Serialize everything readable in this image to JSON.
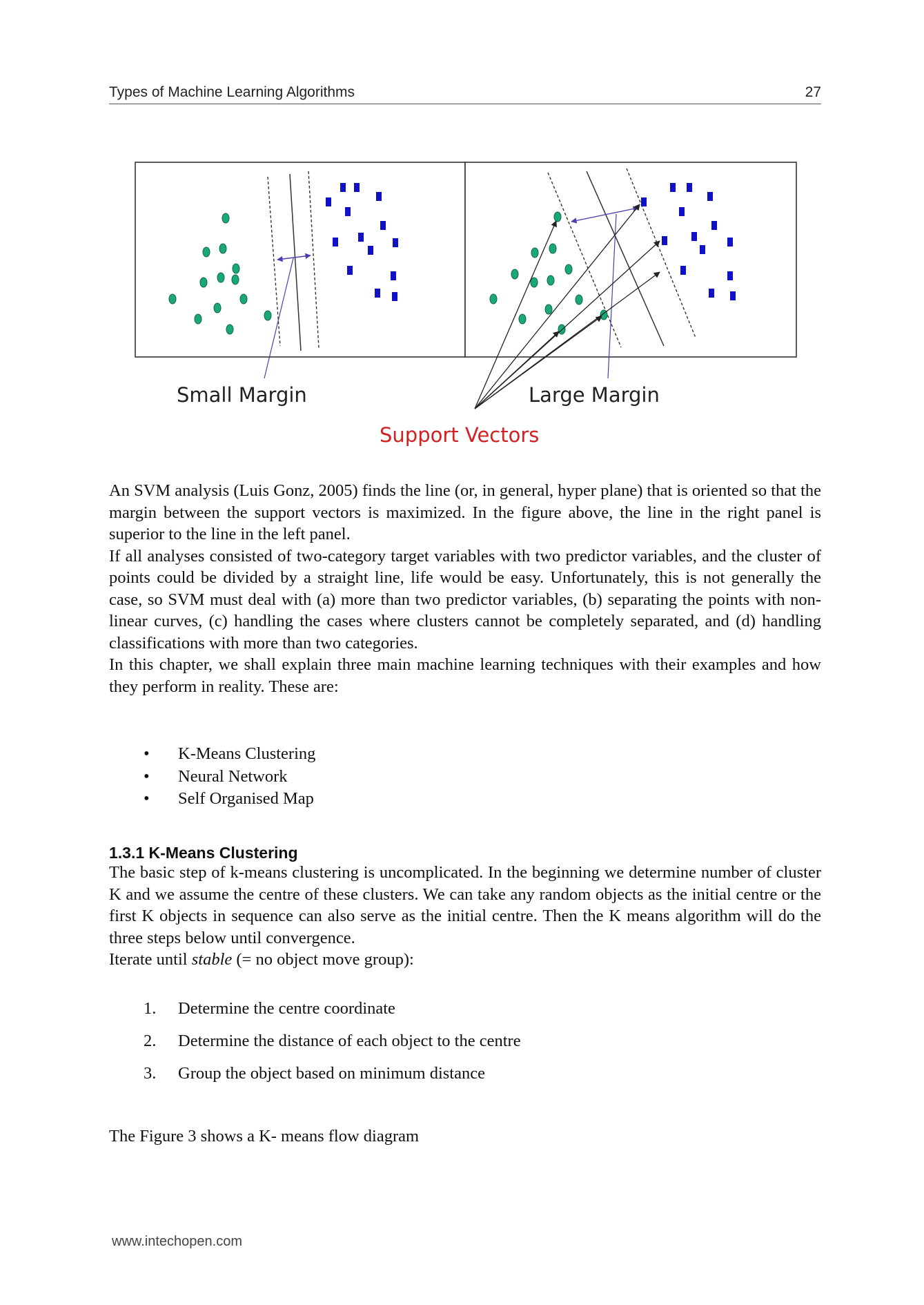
{
  "header": {
    "title": "Types of Machine Learning Algorithms",
    "page_number": "27"
  },
  "figure": {
    "left_label": "Small Margin",
    "right_label": "Large Margin",
    "bottom_label": "Support Vectors",
    "colors": {
      "circle": "#1aa77a",
      "square": "#1010c8",
      "support_vectors_text": "#d42020",
      "arrow": "#333333"
    }
  },
  "paragraphs": [
    "An SVM analysis (Luis Gonz, 2005) finds the line (or, in general, hyper plane) that is oriented so that the margin between the support vectors is maximized. In the figure above, the line in the right panel is superior to the line in the left panel.",
    "If all analyses consisted of two-category target variables with two predictor variables, and the cluster of points could be divided by a straight line, life would be easy. Unfortunately, this is not generally the case, so SVM must deal with (a) more than two predictor variables, (b) separating the points with non-linear curves, (c) handling the cases where clusters cannot be completely separated, and (d) handling classifications with more than two categories.",
    "In this chapter, we shall explain three main machine learning techniques with their examples and how they perform in reality. These are:"
  ],
  "bullets": [
    "K-Means Clustering",
    "Neural Network",
    "Self Organised Map"
  ],
  "bullet_symbol": "•",
  "section": {
    "heading": "1.3.1 K-Means Clustering",
    "paragraph": " The basic step of k-means clustering is uncomplicated. In the beginning we determine number of cluster K and we assume the centre of these clusters. We can take any random objects as the initial centre or the first K objects in sequence can also serve as the initial centre. Then the K means algorithm will do the three steps below until convergence.",
    "iterate_prefix": "Iterate until ",
    "iterate_italic": "stable",
    "iterate_suffix": " (= no object move group):"
  },
  "steps": [
    {
      "num": "1.",
      "text": "Determine the centre coordinate"
    },
    {
      "num": "2.",
      "text": "Determine the distance of each object to the centre"
    },
    {
      "num": "3.",
      "text": "Group the object based on minimum distance"
    }
  ],
  "closing": "The Figure 3 shows a K- means flow diagram",
  "footer": "www.intechopen.com"
}
